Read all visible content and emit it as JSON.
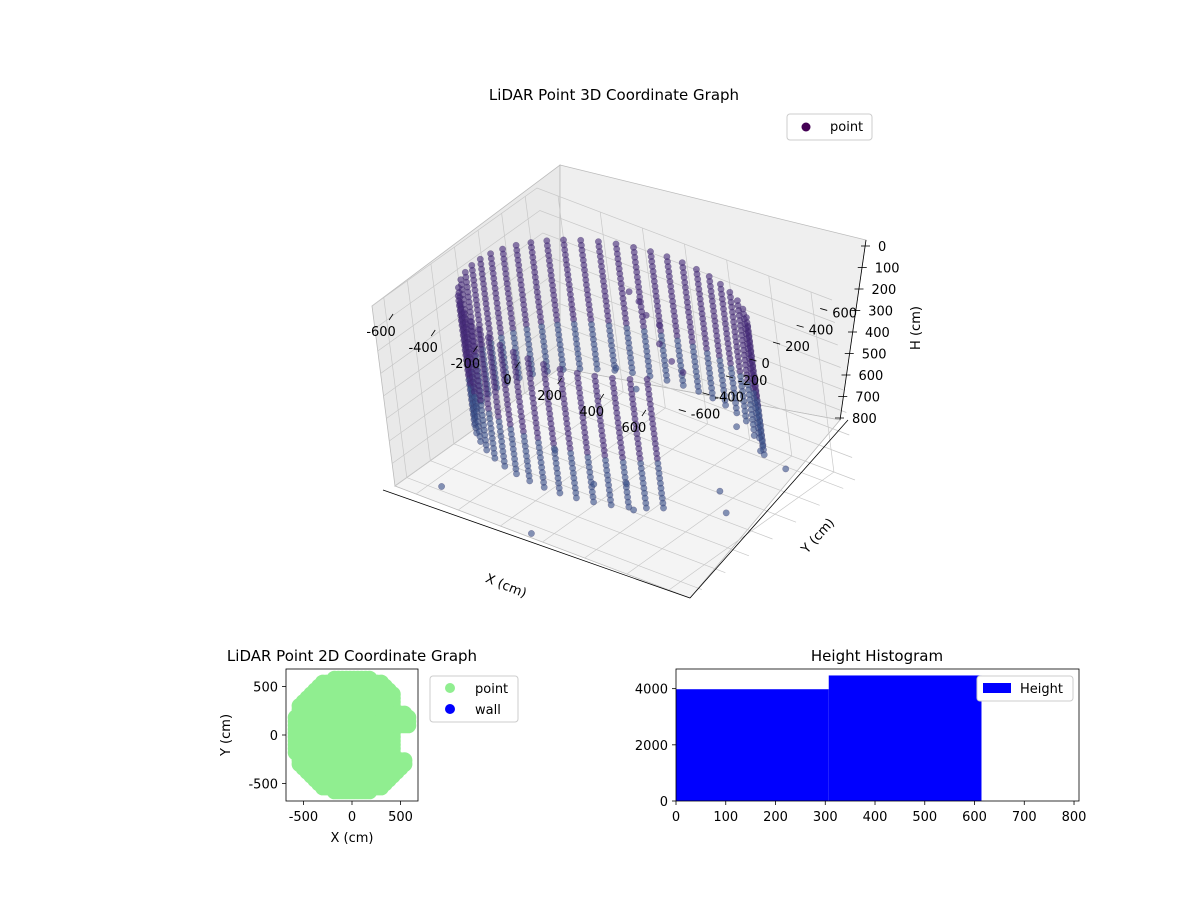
{
  "chart_data": [
    {
      "type": "scatter3d",
      "title": "LiDAR Point 3D Coordinate Graph",
      "xlabel": "X (cm)",
      "ylabel": "Y (cm)",
      "zlabel": "H (cm)",
      "xlim": [
        -700,
        700
      ],
      "ylim": [
        -700,
        700
      ],
      "zlim": [
        0,
        800
      ],
      "z_inverted": true,
      "xticks": [
        "-600",
        "-400",
        "-200",
        "0",
        "200",
        "400",
        "600"
      ],
      "yticks": [
        "-600",
        "-400",
        "-200",
        "0",
        "200",
        "400",
        "600"
      ],
      "zticks": [
        "0",
        "100",
        "200",
        "300",
        "400",
        "500",
        "600",
        "700",
        "800"
      ],
      "grid": true,
      "legend": {
        "placement": "top-right",
        "entries": [
          "point"
        ]
      },
      "series": [
        {
          "name": "point",
          "color": "#3f2a6e",
          "ring_points": {
            "radius_cm": 600,
            "h_range": [
              30,
              620
            ],
            "angle_range_deg": [
              30,
              320
            ]
          },
          "inner_points": [
            {
              "x": -50,
              "y": 300,
              "h": 80
            },
            {
              "x": -20,
              "y": 320,
              "h": 120
            },
            {
              "x": 20,
              "y": 300,
              "h": 160
            },
            {
              "x": 60,
              "y": 330,
              "h": 200
            },
            {
              "x": 100,
              "y": 250,
              "h": 240
            },
            {
              "x": 150,
              "y": 250,
              "h": 300
            },
            {
              "x": 180,
              "y": 280,
              "h": 350
            },
            {
              "x": -100,
              "y": 200,
              "h": 400
            },
            {
              "x": 0,
              "y": 180,
              "h": 450
            },
            {
              "x": 400,
              "y": 300,
              "h": 520
            },
            {
              "x": 450,
              "y": 350,
              "h": 560
            },
            {
              "x": 600,
              "y": 150,
              "h": 500
            },
            {
              "x": 500,
              "y": -50,
              "h": 640
            },
            {
              "x": 200,
              "y": -300,
              "h": 620
            },
            {
              "x": 100,
              "y": -400,
              "h": 620
            },
            {
              "x": -200,
              "y": -200,
              "h": 650
            },
            {
              "x": 250,
              "y": -350,
              "h": 700
            },
            {
              "x": 550,
              "y": -100,
              "h": 700
            },
            {
              "x": -500,
              "y": -650,
              "h": 750
            },
            {
              "x": -50,
              "y": -700,
              "h": 780
            },
            {
              "x": 650,
              "y": 250,
              "h": 600
            }
          ]
        }
      ]
    },
    {
      "type": "scatter",
      "title": "LiDAR Point 2D Coordinate Graph",
      "xlabel": "X (cm)",
      "ylabel": "Y (cm)",
      "xlim": [
        -680,
        680
      ],
      "ylim": [
        -680,
        680
      ],
      "xticks": [
        "-500",
        "0",
        "500"
      ],
      "yticks": [
        "500",
        "0",
        "-500"
      ],
      "legend": {
        "placement": "outside-right",
        "entries": [
          "point",
          "wall"
        ]
      },
      "series": [
        {
          "name": "point",
          "color": "#90ee90"
        },
        {
          "name": "wall",
          "color": "#0000ff"
        }
      ]
    },
    {
      "type": "histogram",
      "title": "Height Histogram",
      "xlim": [
        0,
        810
      ],
      "ylim": [
        0,
        4700
      ],
      "xticks": [
        "0",
        "100",
        "200",
        "300",
        "400",
        "500",
        "600",
        "700",
        "800"
      ],
      "yticks": [
        "0",
        "2000",
        "4000"
      ],
      "legend": {
        "placement": "top-right",
        "entries": [
          "Height"
        ]
      },
      "series": [
        {
          "name": "Height",
          "color": "#0000ff",
          "bins": [
            {
              "x0": 0,
              "x1": 307,
              "count": 3980
            },
            {
              "x0": 307,
              "x1": 614,
              "count": 4470
            }
          ]
        }
      ]
    }
  ]
}
